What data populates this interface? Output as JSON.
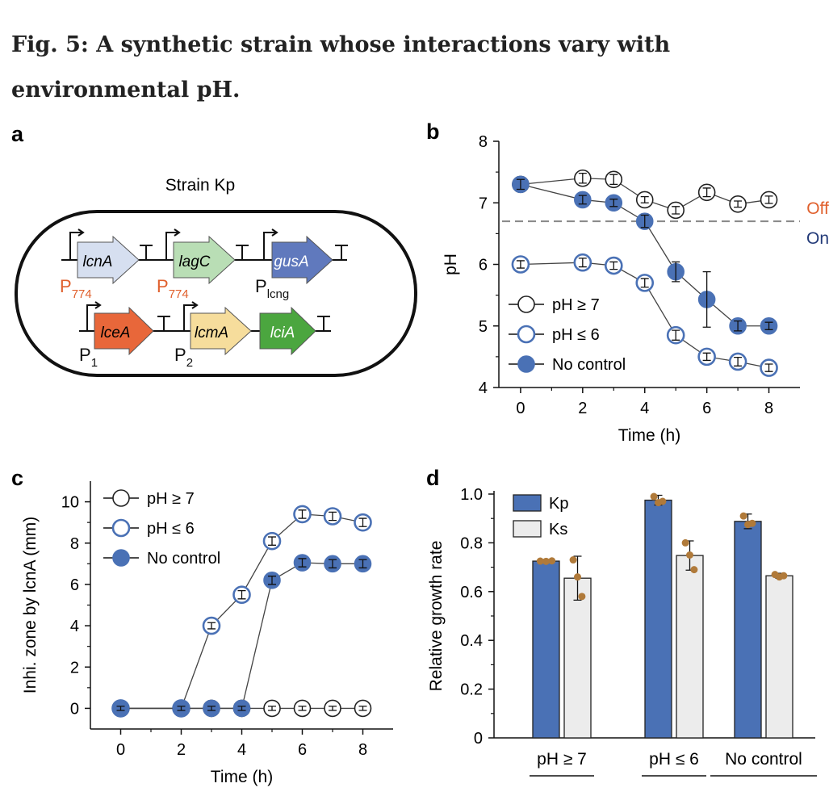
{
  "figure_title": "Fig. 5: A synthetic strain whose interactions vary with environmental pH.",
  "colors": {
    "blue": "#4a71b5",
    "dark_blue": "#233a78",
    "orange": "#e0602d",
    "lcnA": "#d6dff0",
    "lagC": "#b9deb5",
    "gusA": "#6079bd",
    "lceA": "#e8673a",
    "lcmA": "#f6dd9c",
    "lciA": "#4ba63f",
    "ks_fill": "#ececec",
    "dot": "#b07a3a"
  },
  "panel_a": {
    "label": "a",
    "strain_label": "Strain Kp",
    "genes": [
      "lcnA",
      "lagC",
      "gusA",
      "lceA",
      "lcmA",
      "lciA"
    ],
    "promoters": {
      "p774_a": {
        "main": "P",
        "sub": "774"
      },
      "p774_b": {
        "main": "P",
        "sub": "774"
      },
      "plcng": {
        "main": "P",
        "sub": "lcng"
      },
      "p1": {
        "main": "P",
        "sub": "1"
      },
      "p2": {
        "main": "P",
        "sub": "2"
      }
    }
  },
  "chart_data": [
    {
      "panel": "b",
      "type": "scatter",
      "xlabel": "Time (h)",
      "ylabel": "pH",
      "xlim": [
        -0.7,
        9
      ],
      "ylim": [
        4,
        8
      ],
      "xticks": [
        "0",
        "2",
        "4",
        "6",
        "8"
      ],
      "yticks": [
        "4",
        "5",
        "6",
        "7",
        "8"
      ],
      "legend": [
        "pH ≥ 7",
        "pH ≤ 6",
        "No control"
      ],
      "legend_position": "bottom-left",
      "threshold": {
        "y": 6.7,
        "style": "dashed",
        "above_label": "Off",
        "below_label": "On"
      },
      "series": [
        {
          "name": "pH ≥ 7",
          "marker": "open-black",
          "x": [
            0,
            2,
            3,
            4,
            5,
            6,
            7,
            8
          ],
          "y": [
            7.3,
            7.4,
            7.38,
            7.05,
            6.88,
            7.17,
            6.98,
            7.05
          ],
          "err": [
            0.08,
            0.08,
            0.08,
            0.05,
            0.06,
            0.07,
            0.05,
            0.06
          ]
        },
        {
          "name": "pH ≤ 6",
          "marker": "open-blue",
          "x": [
            0,
            2,
            3,
            4,
            5,
            6,
            7,
            8
          ],
          "y": [
            6.0,
            6.03,
            5.98,
            5.7,
            4.85,
            4.5,
            4.42,
            4.32
          ],
          "err": [
            0.06,
            0.07,
            0.06,
            0.07,
            0.08,
            0.06,
            0.07,
            0.06
          ]
        },
        {
          "name": "No control",
          "marker": "filled-blue",
          "x": [
            0,
            2,
            3,
            4,
            5,
            6,
            7,
            8
          ],
          "y": [
            7.3,
            7.05,
            7.0,
            6.7,
            5.88,
            5.43,
            5.0,
            5.0
          ],
          "err": [
            0.08,
            0.07,
            0.06,
            0.1,
            0.16,
            0.45,
            0.08,
            0.06
          ]
        }
      ]
    },
    {
      "panel": "c",
      "type": "scatter",
      "xlabel": "Time (h)",
      "ylabel": "Inhi. zone by lcnA (mm)",
      "xlim": [
        -1,
        9
      ],
      "ylim": [
        -1,
        11
      ],
      "xticks": [
        "0",
        "2",
        "4",
        "6",
        "8"
      ],
      "yticks": [
        "0",
        "2",
        "4",
        "6",
        "8",
        "10"
      ],
      "legend": [
        "pH ≥ 7",
        "pH ≤ 6",
        "No control"
      ],
      "legend_position": "top-left",
      "series": [
        {
          "name": "pH ≥ 7",
          "marker": "open-black",
          "x": [
            0,
            2,
            3,
            4,
            5,
            6,
            7,
            8
          ],
          "y": [
            0,
            0,
            0,
            0,
            0,
            0,
            0,
            0
          ],
          "err": [
            0.1,
            0.1,
            0.1,
            0.1,
            0.1,
            0.1,
            0.1,
            0.1
          ]
        },
        {
          "name": "pH ≤ 6",
          "marker": "open-blue",
          "x": [
            0,
            2,
            3,
            4,
            5,
            6,
            7,
            8
          ],
          "y": [
            0,
            0,
            4.0,
            5.5,
            8.1,
            9.4,
            9.3,
            9.0
          ],
          "err": [
            0.1,
            0.1,
            0.15,
            0.2,
            0.2,
            0.2,
            0.2,
            0.2
          ]
        },
        {
          "name": "No control",
          "marker": "filled-blue",
          "x": [
            0,
            2,
            3,
            4,
            5,
            6,
            7,
            8
          ],
          "y": [
            0,
            0,
            0,
            0,
            6.2,
            7.05,
            7.0,
            7.0
          ],
          "err": [
            0.1,
            0.1,
            0.1,
            0.1,
            0.2,
            0.2,
            0.2,
            0.2
          ]
        }
      ]
    },
    {
      "panel": "d",
      "type": "bar",
      "ylabel": "Relative growth rate",
      "xlabel": "",
      "ylim": [
        0,
        1.0
      ],
      "yticks": [
        "0",
        "0.2",
        "0.4",
        "0.6",
        "0.8",
        "1.0"
      ],
      "categories": [
        "pH ≥ 7",
        "pH ≤ 6",
        "No control"
      ],
      "legend_position": "top-left",
      "series": [
        {
          "name": "Kp",
          "values": [
            0.725,
            0.975,
            0.888
          ],
          "err": [
            0.005,
            0.02,
            0.03
          ],
          "points": [
            [
              0.725,
              0.724,
              0.726
            ],
            [
              0.99,
              0.965,
              0.97
            ],
            [
              0.91,
              0.875,
              0.88
            ]
          ]
        },
        {
          "name": "Ks",
          "values": [
            0.655,
            0.748,
            0.665
          ],
          "err": [
            0.09,
            0.06,
            0.01
          ],
          "points": [
            [
              0.73,
              0.66,
              0.58
            ],
            [
              0.8,
              0.75,
              0.69
            ],
            [
              0.67,
              0.66,
              0.665
            ]
          ]
        }
      ]
    }
  ]
}
